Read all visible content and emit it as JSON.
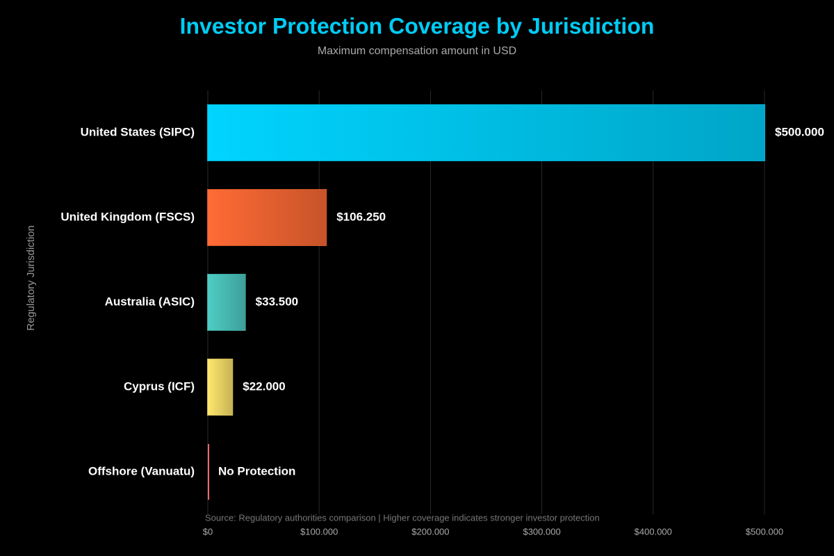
{
  "chart_data": {
    "type": "bar",
    "orientation": "horizontal",
    "title": "Investor Protection Coverage by Jurisdiction",
    "subtitle": "Maximum compensation amount in USD",
    "y_label": "Regulatory Jurisdiction",
    "source": "Source: Regulatory authorities comparison | Higher coverage indicates stronger investor protection",
    "categories": [
      "United States (SIPC)",
      "United Kingdom (FSCS)",
      "Australia (ASIC)",
      "Cyprus (ICF)",
      "Offshore (Vanuatu)"
    ],
    "values": [
      500000,
      106250,
      33500,
      22000,
      0
    ],
    "value_labels": [
      "$500.000",
      "$106.250",
      "$33.500",
      "$22.000",
      "No Protection"
    ],
    "colors": [
      "#00d4ff",
      "#ff6b35",
      "#4ecdc4",
      "#ffe66d",
      "#ff6b6b"
    ],
    "xlim": [
      0,
      500000
    ],
    "xticks": [
      {
        "value": 0,
        "label": "$0"
      },
      {
        "value": 100000,
        "label": "$100.000"
      },
      {
        "value": 200000,
        "label": "$200.000"
      },
      {
        "value": 300000,
        "label": "$300.000"
      },
      {
        "value": 400000,
        "label": "$400.000"
      },
      {
        "value": 500000,
        "label": "$500.000"
      }
    ],
    "grid": true
  }
}
